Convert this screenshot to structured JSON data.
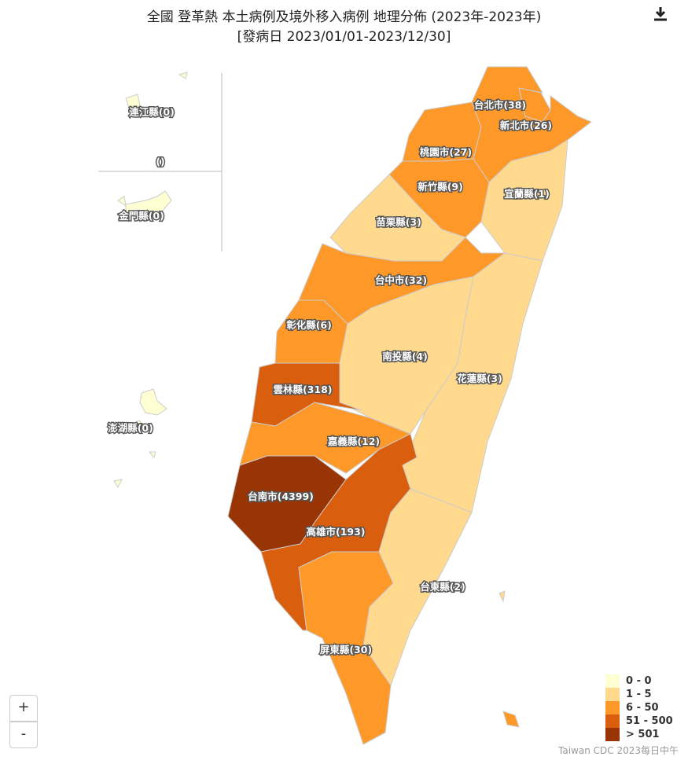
{
  "title": {
    "line1": "全國 登革熱 本土病例及境外移入病例 地理分佈 (2023年-2023年)",
    "line2": "[發病日 2023/01/01-2023/12/30]"
  },
  "download_icon": "download-icon",
  "regions": [
    {
      "name": "連江縣",
      "label": "連江縣(0)",
      "value": 0
    },
    {
      "name": "金門縣",
      "label": "金門縣(0)",
      "value": 0
    },
    {
      "name": "澎湖縣",
      "label": "澎湖縣(0)",
      "value": 0
    },
    {
      "name": "unknown",
      "label": "()",
      "value": null
    },
    {
      "name": "台北市",
      "label": "台北市(38)",
      "value": 38
    },
    {
      "name": "新北市",
      "label": "新北市(26)",
      "value": 26
    },
    {
      "name": "桃園市",
      "label": "桃園市(27)",
      "value": 27
    },
    {
      "name": "新竹縣",
      "label": "新竹縣(9)",
      "value": 9
    },
    {
      "name": "宜蘭縣",
      "label": "宜蘭縣(1)",
      "value": 1
    },
    {
      "name": "苗栗縣",
      "label": "苗栗縣(3)",
      "value": 3
    },
    {
      "name": "台中市",
      "label": "台中市(32)",
      "value": 32
    },
    {
      "name": "彰化縣",
      "label": "彰化縣(6)",
      "value": 6
    },
    {
      "name": "南投縣",
      "label": "南投縣(4)",
      "value": 4
    },
    {
      "name": "花蓮縣",
      "label": "花蓮縣(3)",
      "value": 3
    },
    {
      "name": "雲林縣",
      "label": "雲林縣(318)",
      "value": 318
    },
    {
      "name": "嘉義縣",
      "label": "嘉義縣(12)",
      "value": 12
    },
    {
      "name": "台南市",
      "label": "台南市(4399)",
      "value": 4399
    },
    {
      "name": "高雄市",
      "label": "高雄市(193)",
      "value": 193
    },
    {
      "name": "台東縣",
      "label": "台東縣(2)",
      "value": 2
    },
    {
      "name": "屏東縣",
      "label": "屏東縣(30)",
      "value": 30
    }
  ],
  "legend": [
    {
      "label": "0 - 0",
      "color": "#ffffd4"
    },
    {
      "label": "1 - 5",
      "color": "#fed98e"
    },
    {
      "label": "6 - 50",
      "color": "#fe9929"
    },
    {
      "label": "51 - 500",
      "color": "#d95f0e"
    },
    {
      "label": "> 501",
      "color": "#993404"
    }
  ],
  "zoom_in": "+",
  "zoom_out": "-",
  "credit": "Taiwan CDC 2023每日中午"
}
